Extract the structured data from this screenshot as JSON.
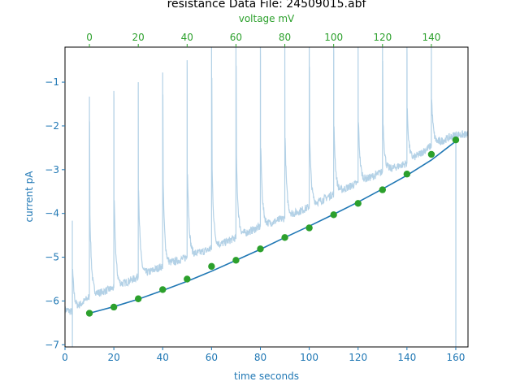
{
  "chart_data": {
    "type": "line",
    "title": "resistance Data File: 24509015.abf",
    "xlabel": "time seconds",
    "ylabel": "current pA",
    "x2label": "voltage mV",
    "xlim": [
      0,
      165
    ],
    "ylim": [
      -7.05,
      -0.2
    ],
    "x2lim": [
      -10,
      155
    ],
    "xticks": [
      0,
      20,
      40,
      60,
      80,
      100,
      120,
      140,
      160
    ],
    "yticks": [
      -7,
      -6,
      -5,
      -4,
      -3,
      -2,
      -1
    ],
    "x2ticks": [
      0,
      20,
      40,
      60,
      80,
      100,
      120,
      140
    ],
    "grid": false,
    "colors": {
      "trace": "#b3d1e6",
      "fit": "#1f77b4",
      "points": "#2ca02c",
      "left_axis": "#1f77b4",
      "top_axis": "#2ca02c"
    },
    "series": [
      {
        "x": [
          10,
          20,
          30,
          40,
          50,
          60,
          70,
          80,
          90,
          100,
          110,
          120,
          130,
          140,
          150,
          160
        ],
        "y": [
          -6.28,
          -6.14,
          -5.95,
          -5.74,
          -5.5,
          -5.21,
          -5.07,
          -4.81,
          -4.55,
          -4.33,
          -4.03,
          -3.77,
          -3.46,
          -3.1,
          -2.65,
          -2.32
        ]
      }
    ],
    "fit_line": {
      "x": [
        10,
        20,
        30,
        40,
        50,
        60,
        70,
        80,
        90,
        100,
        110,
        120,
        130,
        140,
        150,
        160
      ],
      "y": [
        -6.28,
        -6.13,
        -5.96,
        -5.76,
        -5.55,
        -5.32,
        -5.07,
        -4.82,
        -4.55,
        -4.29,
        -4.02,
        -3.74,
        -3.44,
        -3.13,
        -2.78,
        -2.35
      ]
    },
    "raw_trace": {
      "baseline": {
        "x": [
          0,
          3,
          10,
          20,
          30,
          40,
          50,
          60,
          70,
          80,
          90,
          100,
          110,
          120,
          130,
          140,
          150,
          160
        ],
        "y": [
          -6.2,
          -6.25,
          -5.9,
          -5.7,
          -5.45,
          -5.2,
          -5.0,
          -4.8,
          -4.55,
          -4.3,
          -4.1,
          -3.85,
          -3.55,
          -3.3,
          -3.05,
          -2.85,
          -2.45,
          -2.2
        ]
      },
      "spikes": [
        {
          "x": 3,
          "y": -4.2,
          "y_low": -7.05
        },
        {
          "x": 10,
          "y": -1.33
        },
        {
          "x": 20,
          "y": -1.2
        },
        {
          "x": 30,
          "y": -1.0
        },
        {
          "x": 40,
          "y": -0.78
        },
        {
          "x": 50,
          "y": -0.5
        },
        {
          "x": 60,
          "y": -0.2
        },
        {
          "x": 70,
          "y": -0.2
        },
        {
          "x": 80,
          "y": -0.2
        },
        {
          "x": 90,
          "y": -0.2
        },
        {
          "x": 100,
          "y": -0.2
        },
        {
          "x": 110,
          "y": -0.2
        },
        {
          "x": 120,
          "y": -0.2
        },
        {
          "x": 130,
          "y": -0.2
        },
        {
          "x": 140,
          "y": -0.2
        },
        {
          "x": 150,
          "y": -0.2
        },
        {
          "x": 160,
          "y": -2.2,
          "y_low": -7.05
        }
      ]
    }
  }
}
